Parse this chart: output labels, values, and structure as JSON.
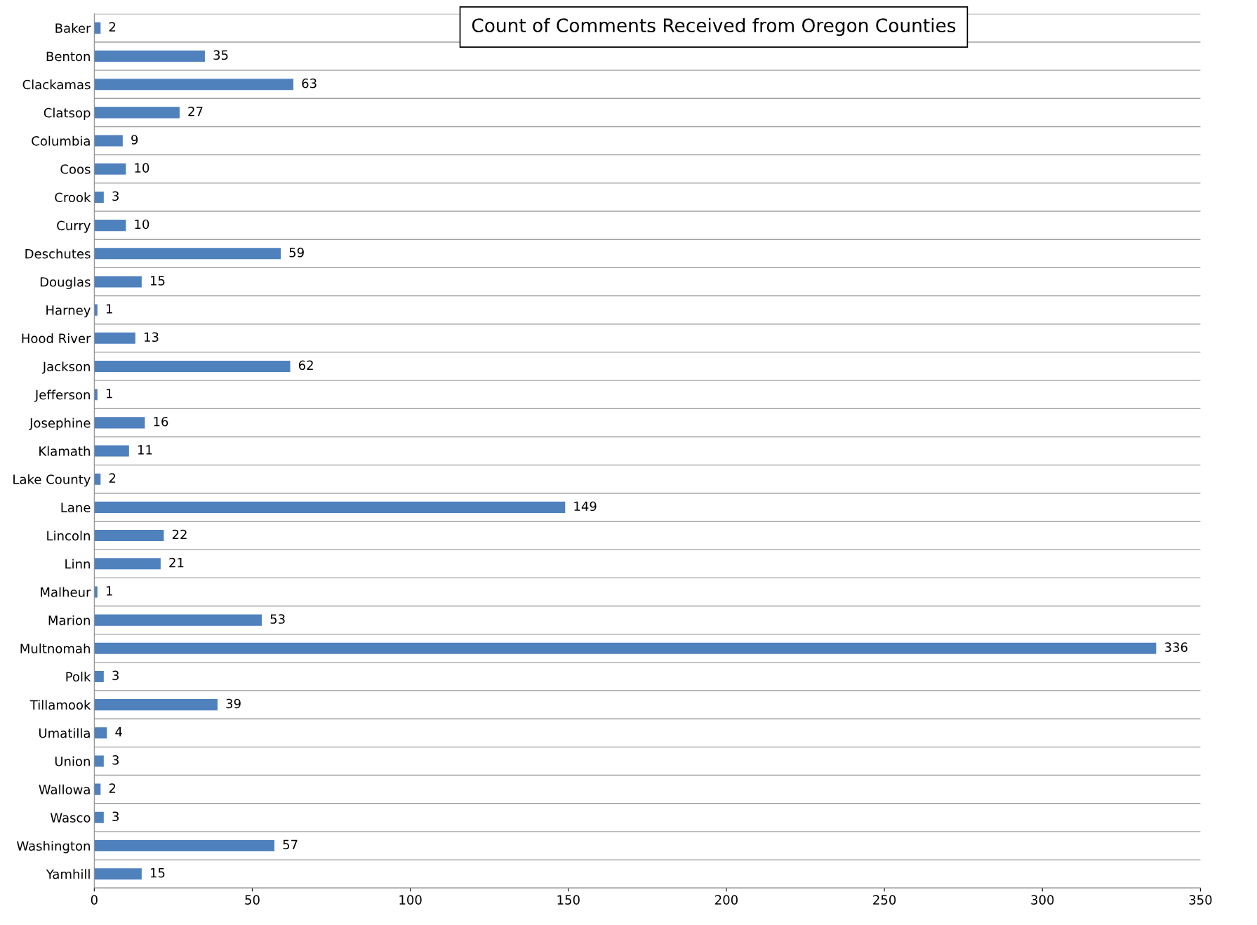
{
  "chart_data": {
    "type": "bar",
    "orientation": "horizontal",
    "title": "Count of Comments Received from Oregon Counties",
    "categories": [
      "Baker",
      "Benton",
      "Clackamas",
      "Clatsop",
      "Columbia",
      "Coos",
      "Crook",
      "Curry",
      "Deschutes",
      "Douglas",
      "Harney",
      "Hood River",
      "Jackson",
      "Jefferson",
      "Josephine",
      "Klamath",
      "Lake County",
      "Lane",
      "Lincoln",
      "Linn",
      "Malheur",
      "Marion",
      "Multnomah",
      "Polk",
      "Tillamook",
      "Umatilla",
      "Union",
      "Wallowa",
      "Wasco",
      "Washington",
      "Yamhill"
    ],
    "values": [
      2,
      35,
      63,
      27,
      9,
      10,
      3,
      10,
      59,
      15,
      1,
      13,
      62,
      1,
      16,
      11,
      2,
      149,
      22,
      21,
      1,
      53,
      336,
      3,
      39,
      4,
      3,
      2,
      3,
      57,
      15
    ],
    "color": "#4f81bd",
    "xlim": [
      0,
      350
    ],
    "xticks": [
      0,
      50,
      100,
      150,
      200,
      250,
      300,
      350
    ],
    "grid": "y",
    "data_labels": true,
    "legend": false
  }
}
